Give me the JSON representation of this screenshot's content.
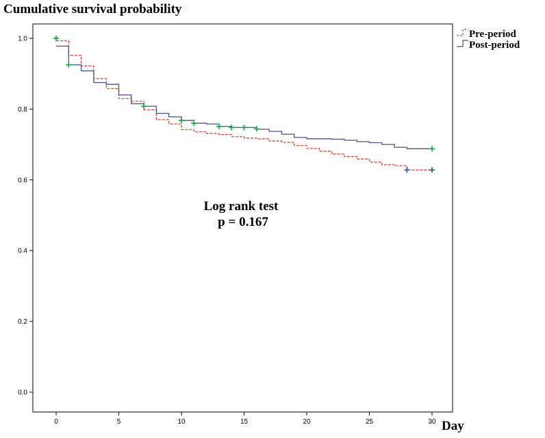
{
  "chart_data": {
    "type": "line",
    "chart_style": "Kaplan-Meier step curves with censoring marks",
    "ylabel": "Cumulative survival probability",
    "xlabel": "Day",
    "xlim": [
      -2,
      31.5
    ],
    "ylim": [
      -0.05,
      1.06
    ],
    "x_ticks": [
      0,
      5,
      10,
      15,
      20,
      25,
      30
    ],
    "y_ticks": [
      0.0,
      0.2,
      0.4,
      0.6,
      0.8,
      1.0
    ],
    "y_tick_labels": [
      "0.0",
      "0.2",
      "0.4",
      "0.6",
      "0.8",
      "1.0"
    ],
    "grid": false,
    "legend_position": "top-right, outside plot",
    "annotations": [
      "Log rank test",
      "p = 0.167"
    ],
    "series": [
      {
        "name": "Pre-period",
        "color": "#d9453a",
        "line_style": "dashed",
        "x": [
          0,
          1,
          2,
          3,
          4,
          5,
          6,
          7,
          8,
          9,
          10,
          11,
          12,
          13,
          14,
          15,
          16,
          17,
          18,
          19,
          20,
          21,
          22,
          23,
          24,
          25,
          26,
          27,
          28,
          30
        ],
        "y": [
          0.993,
          0.952,
          0.922,
          0.886,
          0.858,
          0.83,
          0.822,
          0.798,
          0.77,
          0.758,
          0.742,
          0.736,
          0.731,
          0.728,
          0.722,
          0.718,
          0.716,
          0.71,
          0.706,
          0.697,
          0.689,
          0.681,
          0.673,
          0.666,
          0.659,
          0.65,
          0.643,
          0.64,
          0.628,
          0.628
        ],
        "censor_x": [
          28,
          30
        ],
        "censor_y": [
          0.628,
          0.628
        ]
      },
      {
        "name": "Post-period",
        "color": "#4b4f8c",
        "line_style": "solid",
        "x": [
          0,
          1,
          2,
          3,
          4,
          5,
          6,
          7,
          8,
          9,
          10,
          11,
          12,
          13,
          14,
          15,
          16,
          17,
          18,
          19,
          20,
          21,
          22,
          23,
          24,
          25,
          26,
          27,
          28,
          30
        ],
        "y": [
          0.978,
          0.925,
          0.908,
          0.875,
          0.87,
          0.84,
          0.815,
          0.808,
          0.788,
          0.778,
          0.768,
          0.76,
          0.758,
          0.751,
          0.748,
          0.748,
          0.743,
          0.737,
          0.729,
          0.72,
          0.716,
          0.716,
          0.715,
          0.712,
          0.708,
          0.705,
          0.7,
          0.692,
          0.688,
          0.688
        ],
        "censor_x": [
          0,
          1,
          7,
          10,
          11,
          13,
          14,
          15,
          16,
          30
        ],
        "censor_y": [
          1.0,
          0.925,
          0.808,
          0.768,
          0.76,
          0.751,
          0.748,
          0.748,
          0.744,
          0.688
        ]
      }
    ],
    "censor_mark_color": "#1fa84a"
  }
}
